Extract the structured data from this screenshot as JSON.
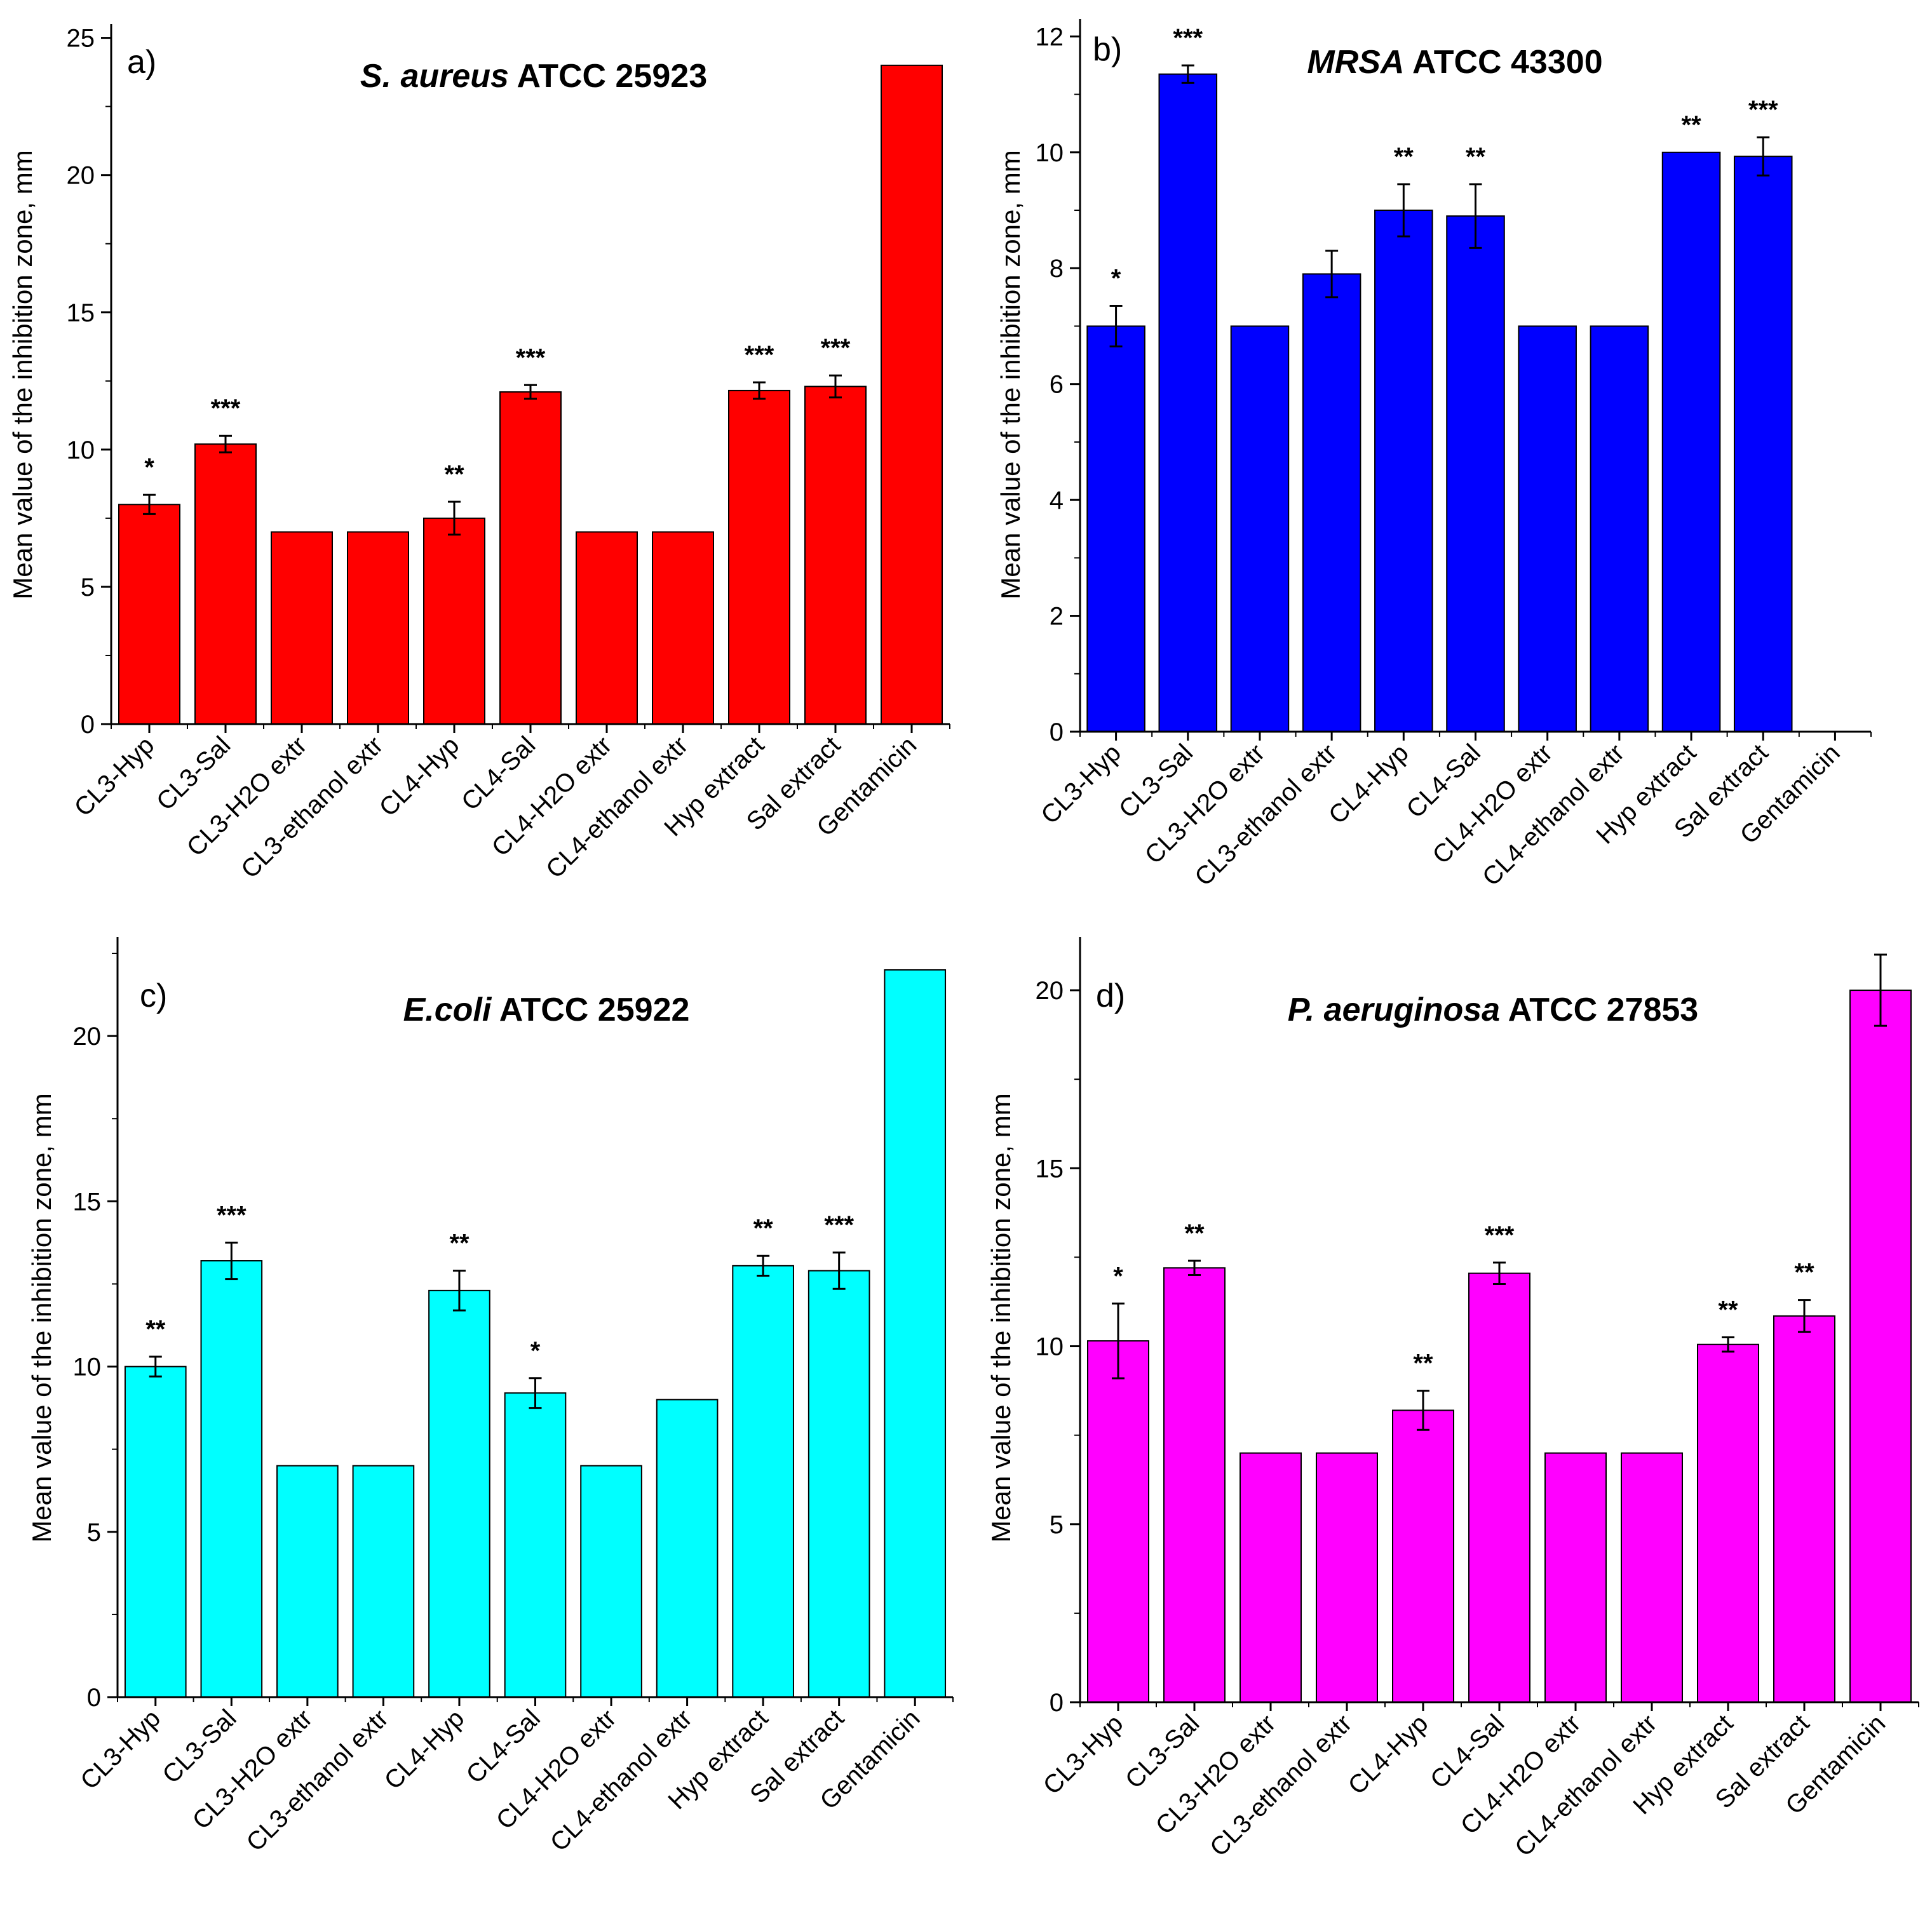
{
  "figure": {
    "panels": [
      {
        "tag": "a)",
        "title_italic": "S. aureus",
        "title_rest": " ATCC 25923",
        "color": "#ff0000"
      },
      {
        "tag": "b)",
        "title_italic": "MRSA",
        "title_rest": "  ATCC 43300",
        "color": "#0000ff"
      },
      {
        "tag": "c)",
        "title_italic": "E.coli",
        "title_rest": " ATCC 25922",
        "color": "#00ffff"
      },
      {
        "tag": "d)",
        "title_italic": "P. aeruginosa",
        "title_rest": " ATCC 27853",
        "color": "#ff00ff"
      }
    ]
  },
  "chart_data": [
    {
      "type": "bar",
      "title": "S. aureus ATCC 25923",
      "panel": "a)",
      "ylabel": "Mean value of the inhibition zone, mm",
      "xlabel": "",
      "ylim": [
        0,
        25.5
      ],
      "yticks": [
        0,
        5,
        10,
        15,
        20,
        25
      ],
      "categories": [
        "CL3-Hyp",
        "CL3-Sal",
        "CL3-H2O extr",
        "CL3-ethanol extr",
        "CL4-Hyp",
        "CL4-Sal",
        "CL4-H2O extr",
        "CL4-ethanol extr",
        "Hyp extract",
        "Sal extract",
        "Gentamicin"
      ],
      "values": [
        8.0,
        10.2,
        7.0,
        7.0,
        7.5,
        12.1,
        7.0,
        7.0,
        12.15,
        12.3,
        24.0
      ],
      "errors": [
        0.35,
        0.3,
        0,
        0,
        0.6,
        0.25,
        0,
        0,
        0.3,
        0.4,
        0
      ],
      "significance": [
        "*",
        "***",
        "",
        "",
        "**",
        "***",
        "",
        "",
        "***",
        "***",
        ""
      ],
      "color": "#ff0000"
    },
    {
      "type": "bar",
      "title": "MRSA ATCC 43300",
      "panel": "b)",
      "ylabel": "Mean value of the inhibition zone, mm",
      "xlabel": "",
      "ylim": [
        0,
        12.3
      ],
      "yticks": [
        0,
        2,
        4,
        6,
        8,
        10,
        12
      ],
      "categories": [
        "CL3-Hyp",
        "CL3-Sal",
        "CL3-H2O extr",
        "CL3-ethanol extr",
        "CL4-Hyp",
        "CL4-Sal",
        "CL4-H2O extr",
        "CL4-ethanol extr",
        "Hyp extract",
        "Sal extract",
        "Gentamicin"
      ],
      "values": [
        7.0,
        11.35,
        7.0,
        7.9,
        9.0,
        8.9,
        7.0,
        7.0,
        10.0,
        9.93,
        0
      ],
      "errors": [
        0.35,
        0.15,
        0,
        0.4,
        0.45,
        0.55,
        0,
        0,
        0,
        0.33,
        0
      ],
      "significance": [
        "*",
        "***",
        "",
        "",
        "**",
        "**",
        "",
        "",
        "**",
        "***",
        ""
      ],
      "color": "#0000ff"
    },
    {
      "type": "bar",
      "title": "E.coli ATCC 25922",
      "panel": "c)",
      "ylabel": "Mean value of the inhibition zone, mm",
      "xlabel": "",
      "ylim": [
        0,
        23.0
      ],
      "yticks": [
        0,
        5,
        10,
        15,
        20
      ],
      "categories": [
        "CL3-Hyp",
        "CL3-Sal",
        "CL3-H2O extr",
        "CL3-ethanol extr",
        "CL4-Hyp",
        "CL4-Sal",
        "CL4-H2O extr",
        "CL4-ethanol extr",
        "Hyp extract",
        "Sal extract",
        "Gentamicin"
      ],
      "values": [
        10.0,
        13.2,
        7.0,
        7.0,
        12.3,
        9.2,
        7.0,
        9.0,
        13.05,
        12.9,
        22.0
      ],
      "errors": [
        0.3,
        0.55,
        0,
        0,
        0.6,
        0.45,
        0,
        0,
        0.3,
        0.55,
        0
      ],
      "significance": [
        "**",
        "***",
        "",
        "",
        "**",
        "*",
        "",
        "",
        "**",
        "***",
        ""
      ],
      "color": "#00ffff"
    },
    {
      "type": "bar",
      "title": "P. aeruginosa ATCC 27853",
      "panel": "d)",
      "ylabel": "Mean value of the inhibition zone, mm",
      "xlabel": "",
      "ylim": [
        0,
        21.5
      ],
      "yticks": [
        0,
        5,
        10,
        15,
        20
      ],
      "categories": [
        "CL3-Hyp",
        "CL3-Sal",
        "CL3-H2O extr",
        "CL3-ethanol extr",
        "CL4-Hyp",
        "CL4-Sal",
        "CL4-H2O extr",
        "CL4-ethanol extr",
        "Hyp extract",
        "Sal extract",
        "Gentamicin"
      ],
      "values": [
        10.15,
        12.2,
        7.0,
        7.0,
        8.2,
        12.05,
        7.0,
        7.0,
        10.05,
        10.85,
        20.0
      ],
      "errors": [
        1.05,
        0.2,
        0,
        0,
        0.55,
        0.3,
        0,
        0,
        0.2,
        0.45,
        1.0
      ],
      "significance": [
        "*",
        "**",
        "",
        "",
        "**",
        "***",
        "",
        "",
        "**",
        "**",
        ""
      ],
      "color": "#ff00ff"
    }
  ]
}
